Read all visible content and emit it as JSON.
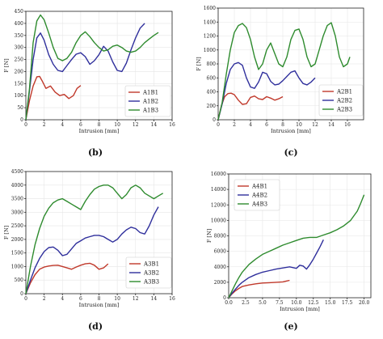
{
  "chart_data": [
    {
      "type": "line",
      "panel_label": "(b)",
      "xlabel": "Intrusion [mm]",
      "ylabel": "F [N]",
      "xlim": [
        0,
        16
      ],
      "ylim": [
        0,
        450
      ],
      "xticks": [
        0,
        2,
        4,
        6,
        8,
        10,
        12,
        14,
        16
      ],
      "yticks": [
        0,
        50,
        100,
        150,
        200,
        250,
        300,
        350,
        400,
        450
      ],
      "legend_position": "lower-right",
      "series": [
        {
          "name": "A1B1",
          "color": "#c0392b",
          "x": [
            0,
            0.4,
            0.8,
            1.2,
            1.5,
            1.8,
            2.2,
            2.7,
            3.2,
            3.7,
            4.2,
            4.7,
            5.2,
            5.6,
            6.0
          ],
          "y": [
            0,
            80,
            140,
            178,
            180,
            160,
            130,
            140,
            115,
            100,
            105,
            88,
            100,
            130,
            142
          ]
        },
        {
          "name": "A1B2",
          "color": "#2f2f9c",
          "x": [
            0,
            0.4,
            0.8,
            1.2,
            1.6,
            2.0,
            2.5,
            3.0,
            3.5,
            4.0,
            4.5,
            5.0,
            5.5,
            6.0,
            6.5,
            7.0,
            7.5,
            8.0,
            8.5,
            9.0,
            9.5,
            10.0,
            10.5,
            11.0,
            11.5,
            12.0,
            12.5,
            13.0
          ],
          "y": [
            0,
            120,
            250,
            340,
            360,
            330,
            270,
            230,
            205,
            200,
            225,
            250,
            272,
            278,
            262,
            230,
            245,
            270,
            305,
            285,
            240,
            205,
            200,
            235,
            290,
            340,
            380,
            400
          ]
        },
        {
          "name": "A1B3",
          "color": "#2e8b2e",
          "x": [
            0,
            0.4,
            0.8,
            1.2,
            1.6,
            2.0,
            2.5,
            3.0,
            3.5,
            4.0,
            4.5,
            5.0,
            5.5,
            6.0,
            6.5,
            7.0,
            7.5,
            8.0,
            8.5,
            9.0,
            9.5,
            10.0,
            10.5,
            11.0,
            11.5,
            12.0,
            12.5,
            13.0,
            13.5,
            14.0,
            14.5
          ],
          "y": [
            0,
            130,
            320,
            410,
            435,
            415,
            360,
            300,
            255,
            245,
            255,
            280,
            320,
            350,
            365,
            345,
            320,
            300,
            285,
            290,
            305,
            310,
            300,
            285,
            280,
            285,
            300,
            320,
            335,
            350,
            362
          ]
        }
      ]
    },
    {
      "type": "line",
      "panel_label": "(c)",
      "xlabel": "Intrusion [mm]",
      "ylabel": "F [N]",
      "xlim": [
        0,
        18
      ],
      "ylim": [
        0,
        1600
      ],
      "xticks": [
        0,
        2,
        4,
        6,
        8,
        10,
        12,
        14,
        16
      ],
      "yticks": [
        0,
        200,
        400,
        600,
        800,
        1000,
        1200,
        1400,
        1600
      ],
      "legend_position": "lower-right",
      "series": [
        {
          "name": "A2B1",
          "color": "#c0392b",
          "x": [
            0,
            0.4,
            0.8,
            1.2,
            1.6,
            2.0,
            2.5,
            3.0,
            3.5,
            4.0,
            4.5,
            5.0,
            5.5,
            6.0,
            6.5,
            7.0,
            7.5,
            8.0
          ],
          "y": [
            0,
            200,
            330,
            375,
            380,
            360,
            280,
            220,
            230,
            320,
            340,
            300,
            290,
            330,
            310,
            280,
            300,
            330
          ]
        },
        {
          "name": "A2B2",
          "color": "#2f2f9c",
          "x": [
            0,
            0.5,
            1.0,
            1.5,
            2.0,
            2.5,
            3.0,
            3.5,
            4.0,
            4.5,
            5.0,
            5.5,
            6.0,
            6.5,
            7.0,
            7.5,
            8.0,
            8.5,
            9.0,
            9.5,
            10.0,
            10.5,
            11.0,
            11.5,
            12.0
          ],
          "y": [
            0,
            230,
            520,
            720,
            800,
            820,
            780,
            600,
            470,
            450,
            540,
            680,
            660,
            550,
            500,
            510,
            560,
            620,
            680,
            700,
            600,
            520,
            500,
            540,
            600
          ]
        },
        {
          "name": "A2B3",
          "color": "#2e8b2e",
          "x": [
            0,
            0.5,
            1.0,
            1.5,
            2.0,
            2.5,
            3.0,
            3.5,
            4.0,
            4.5,
            5.0,
            5.5,
            6.0,
            6.5,
            7.0,
            7.5,
            8.0,
            8.5,
            9.0,
            9.5,
            10.0,
            10.5,
            11.0,
            11.5,
            12.0,
            12.5,
            13.0,
            13.5,
            14.0,
            14.5,
            15.0,
            15.5,
            16.0,
            16.3
          ],
          "y": [
            0,
            250,
            650,
            1000,
            1250,
            1350,
            1380,
            1320,
            1150,
            900,
            720,
            800,
            1000,
            1100,
            950,
            800,
            760,
            900,
            1150,
            1280,
            1300,
            1150,
            900,
            760,
            800,
            1000,
            1200,
            1350,
            1390,
            1200,
            900,
            760,
            800,
            900
          ]
        }
      ]
    },
    {
      "type": "line",
      "panel_label": "(d)",
      "xlabel": "Intrusion [mm]",
      "ylabel": "F [N]",
      "xlim": [
        0,
        16
      ],
      "ylim": [
        0,
        4500
      ],
      "xticks": [
        0,
        2,
        4,
        6,
        8,
        10,
        12,
        14,
        16
      ],
      "yticks": [
        0,
        500,
        1000,
        1500,
        2000,
        2500,
        3000,
        3500,
        4000,
        4500
      ],
      "legend_position": "lower-right",
      "series": [
        {
          "name": "A3B1",
          "color": "#c0392b",
          "x": [
            0,
            0.5,
            1.0,
            1.5,
            2.0,
            2.5,
            3.0,
            3.5,
            4.0,
            4.5,
            5.0,
            5.5,
            6.0,
            6.5,
            7.0,
            7.5,
            8.0,
            8.5,
            9.0
          ],
          "y": [
            0,
            400,
            700,
            900,
            980,
            1020,
            1040,
            1050,
            1000,
            950,
            900,
            980,
            1050,
            1100,
            1120,
            1050,
            900,
            950,
            1100
          ]
        },
        {
          "name": "A3B2",
          "color": "#2f2f9c",
          "x": [
            0,
            0.5,
            1.0,
            1.5,
            2.0,
            2.5,
            3.0,
            3.5,
            4.0,
            4.5,
            5.0,
            5.5,
            6.0,
            6.5,
            7.0,
            7.5,
            8.0,
            8.5,
            9.0,
            9.5,
            10.0,
            10.5,
            11.0,
            11.5,
            12.0,
            12.5,
            13.0,
            13.5,
            14.0,
            14.5
          ],
          "y": [
            0,
            500,
            950,
            1300,
            1550,
            1700,
            1720,
            1600,
            1400,
            1450,
            1650,
            1850,
            1950,
            2050,
            2100,
            2150,
            2150,
            2100,
            2000,
            1900,
            2000,
            2200,
            2350,
            2450,
            2400,
            2250,
            2200,
            2500,
            2900,
            3200
          ]
        },
        {
          "name": "A3B3",
          "color": "#2e8b2e",
          "x": [
            0,
            0.5,
            1.0,
            1.5,
            2.0,
            2.5,
            3.0,
            3.5,
            4.0,
            4.5,
            5.0,
            5.5,
            6.0,
            6.5,
            7.0,
            7.5,
            8.0,
            8.5,
            9.0,
            9.5,
            10.0,
            10.5,
            11.0,
            11.5,
            12.0,
            12.5,
            13.0,
            13.5,
            14.0,
            14.5,
            15.0
          ],
          "y": [
            0,
            1000,
            1800,
            2400,
            2850,
            3150,
            3350,
            3450,
            3500,
            3400,
            3300,
            3200,
            3100,
            3400,
            3650,
            3850,
            3950,
            4000,
            4000,
            3900,
            3700,
            3500,
            3650,
            3900,
            4000,
            3900,
            3700,
            3600,
            3500,
            3600,
            3700
          ]
        }
      ]
    },
    {
      "type": "line",
      "panel_label": "(e)",
      "xlabel": "Intrusion [mm]",
      "ylabel": "F [N]",
      "xlim": [
        0,
        21
      ],
      "ylim": [
        0,
        16000
      ],
      "xticks": [
        0.0,
        2.5,
        5.0,
        7.5,
        10.0,
        12.5,
        15.0,
        17.5,
        20.0
      ],
      "xtick_labels": [
        "0.0",
        "2.5",
        "5.0",
        "7.5",
        "10.0",
        "12.5",
        "15.0",
        "17.5",
        "20.0"
      ],
      "yticks": [
        0,
        2000,
        4000,
        6000,
        8000,
        10000,
        12000,
        14000,
        16000
      ],
      "legend_position": "upper-left",
      "series": [
        {
          "name": "A4B1",
          "color": "#c0392b",
          "x": [
            0,
            0.5,
            1.0,
            1.5,
            2.0,
            3.0,
            4.0,
            5.0,
            6.0,
            7.0,
            8.0,
            8.5,
            9.0
          ],
          "y": [
            0,
            500,
            900,
            1200,
            1450,
            1650,
            1800,
            1900,
            1950,
            2000,
            2050,
            2150,
            2250
          ]
        },
        {
          "name": "A4B2",
          "color": "#2f2f9c",
          "x": [
            0,
            0.5,
            1.0,
            1.5,
            2.0,
            3.0,
            4.0,
            5.0,
            6.0,
            7.0,
            8.0,
            9.0,
            10.0,
            10.5,
            11.0,
            11.5,
            12.0,
            12.5,
            13.0,
            13.5,
            14.0
          ],
          "y": [
            0,
            600,
            1100,
            1600,
            2000,
            2600,
            3000,
            3300,
            3500,
            3700,
            3850,
            4000,
            3800,
            4200,
            4100,
            3700,
            4300,
            5000,
            5800,
            6600,
            7500
          ]
        },
        {
          "name": "A4B3",
          "color": "#2e8b2e",
          "x": [
            0,
            0.5,
            1.0,
            1.5,
            2.0,
            3.0,
            4.0,
            5.0,
            6.0,
            7.0,
            8.0,
            9.0,
            10.0,
            11.0,
            12.0,
            13.0,
            14.0,
            15.0,
            16.0,
            17.0,
            18.0,
            19.0,
            19.5,
            20.0
          ],
          "y": [
            0,
            900,
            1800,
            2600,
            3300,
            4300,
            5000,
            5600,
            6000,
            6400,
            6800,
            7100,
            7400,
            7700,
            7800,
            7800,
            8100,
            8400,
            8800,
            9300,
            10000,
            11200,
            12200,
            13300
          ]
        }
      ]
    }
  ]
}
